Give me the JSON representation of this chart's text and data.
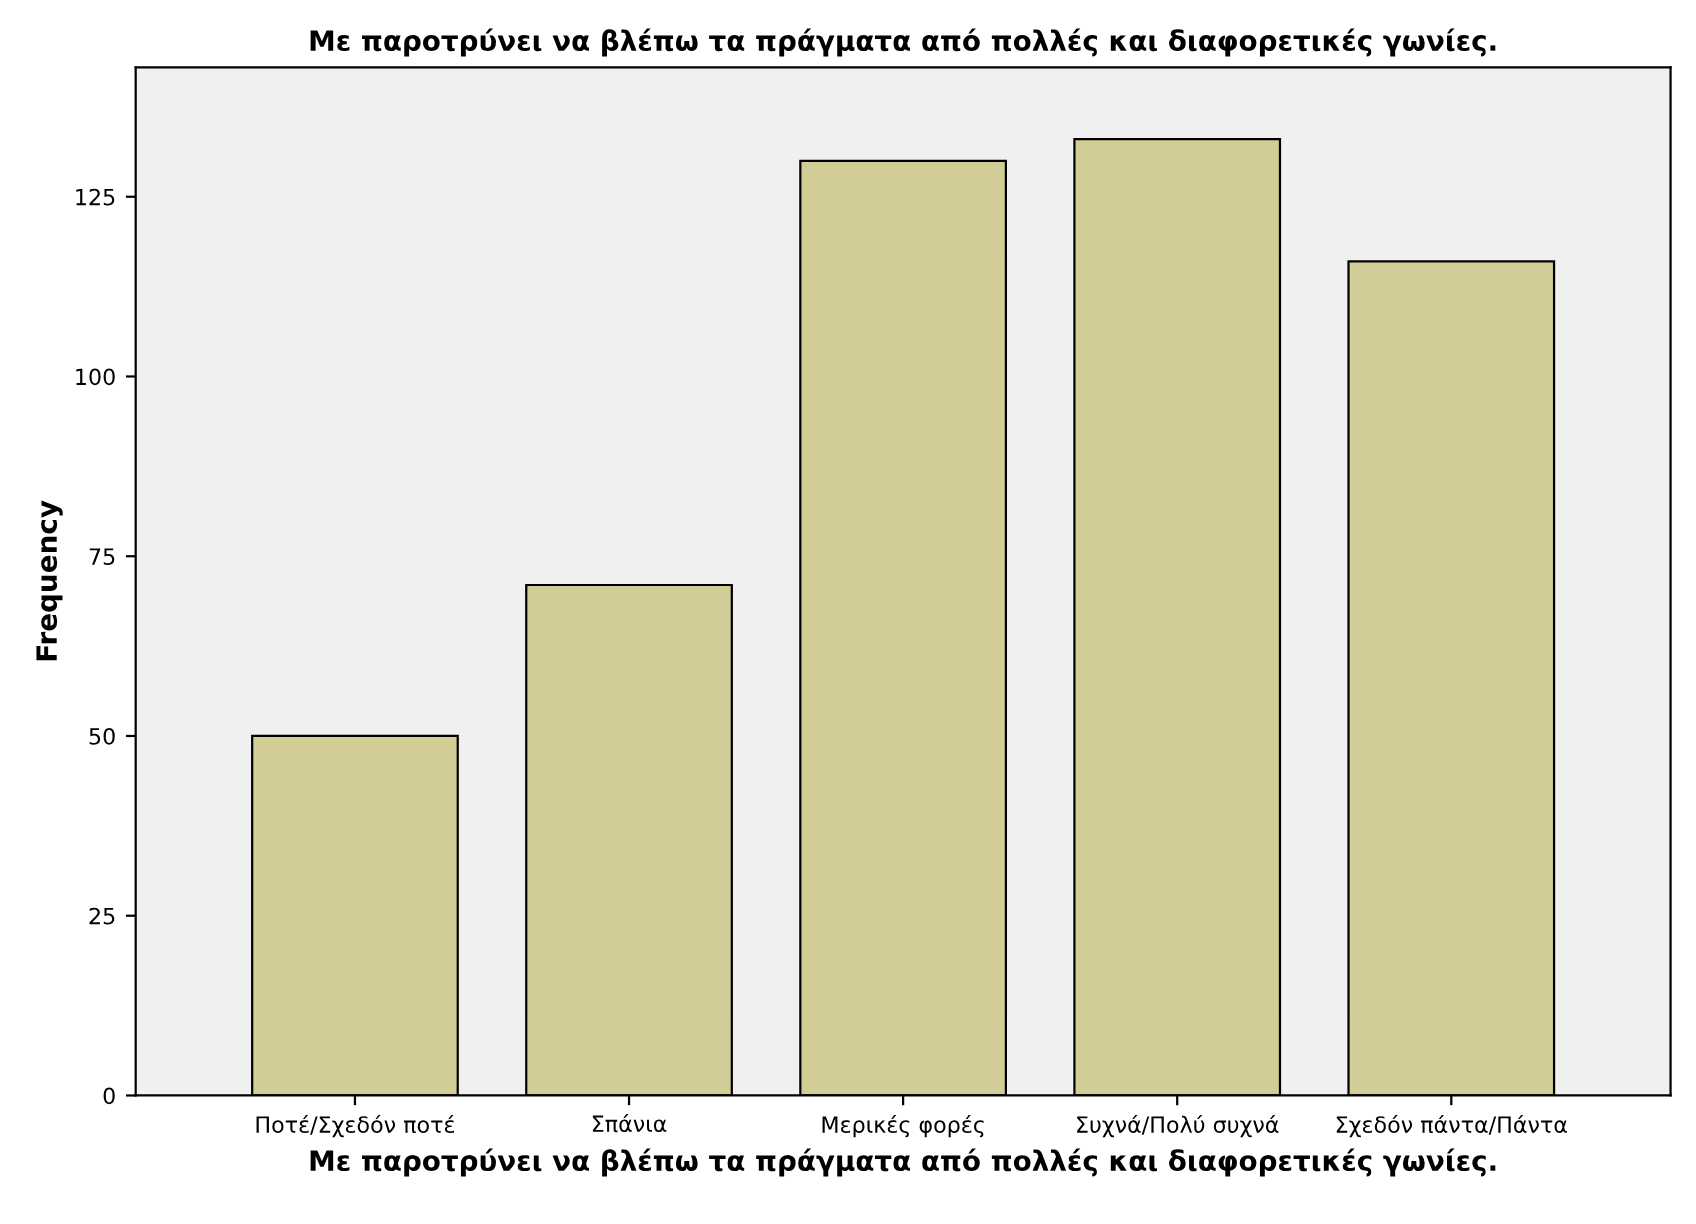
{
  "chart_data": {
    "type": "bar",
    "title": "Με παροτρύνει να βλέπω τα πράγματα από πολλές και διαφορετικές γωνίες.",
    "xlabel": "Με παροτρύνει να βλέπω τα πράγματα από πολλές και διαφορετικές γωνίες.",
    "ylabel": "Frequency",
    "categories": [
      "Ποτέ/Σχεδόν ποτέ",
      "Σπάνια",
      "Μερικές φορές",
      "Συχνά/Πολύ συχνά",
      "Σχεδόν πάντα/Πάντα"
    ],
    "values": [
      50,
      71,
      130,
      133,
      116
    ],
    "color": "#d2cd96",
    "ylim": [
      0,
      143
    ],
    "yticks": [
      0,
      25,
      50,
      75,
      100,
      125
    ],
    "grid": false
  }
}
